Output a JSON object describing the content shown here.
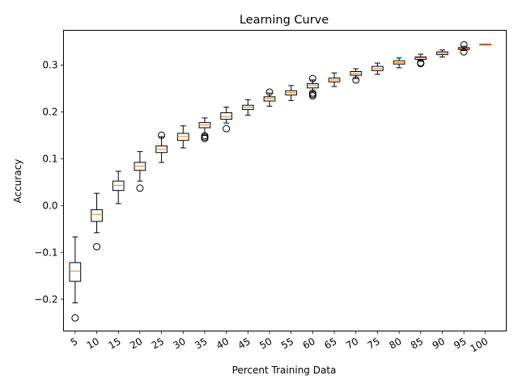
{
  "chart_data": {
    "type": "box",
    "title": "Learning Curve",
    "xlabel": "Percent Training Data",
    "ylabel": "Accuracy",
    "categories": [
      "5",
      "10",
      "15",
      "20",
      "25",
      "30",
      "35",
      "40",
      "45",
      "50",
      "55",
      "60",
      "65",
      "70",
      "75",
      "80",
      "85",
      "90",
      "95",
      "100"
    ],
    "ylim": [
      -0.268,
      0.374
    ],
    "yticks": [
      -0.2,
      -0.1,
      0.0,
      0.1,
      0.2,
      0.3
    ],
    "ytick_labels": [
      "−0.2",
      "−0.1",
      "0.0",
      "0.1",
      "0.2",
      "0.3"
    ],
    "grid": false,
    "boxes": [
      {
        "whisker_low": -0.208,
        "q1": -0.162,
        "median": -0.14,
        "q3": -0.122,
        "whisker_high": -0.067,
        "fliers": [
          -0.24
        ]
      },
      {
        "whisker_low": -0.058,
        "q1": -0.034,
        "median": -0.019,
        "q3": -0.009,
        "whisker_high": 0.026,
        "fliers": [
          -0.088
        ]
      },
      {
        "whisker_low": 0.004,
        "q1": 0.032,
        "median": 0.043,
        "q3": 0.052,
        "whisker_high": 0.073,
        "fliers": []
      },
      {
        "whisker_low": 0.052,
        "q1": 0.075,
        "median": 0.084,
        "q3": 0.092,
        "whisker_high": 0.115,
        "fliers": [
          0.037
        ]
      },
      {
        "whisker_low": 0.092,
        "q1": 0.113,
        "median": 0.12,
        "q3": 0.127,
        "whisker_high": 0.147,
        "fliers": [
          0.15
        ]
      },
      {
        "whisker_low": 0.123,
        "q1": 0.139,
        "median": 0.147,
        "q3": 0.154,
        "whisker_high": 0.17,
        "fliers": []
      },
      {
        "whisker_low": 0.15,
        "q1": 0.166,
        "median": 0.172,
        "q3": 0.177,
        "whisker_high": 0.187,
        "fliers": [
          0.143,
          0.146,
          0.149
        ]
      },
      {
        "whisker_low": 0.176,
        "q1": 0.184,
        "median": 0.19,
        "q3": 0.198,
        "whisker_high": 0.21,
        "fliers": [
          0.164
        ]
      },
      {
        "whisker_low": 0.193,
        "q1": 0.205,
        "median": 0.21,
        "q3": 0.214,
        "whisker_high": 0.226,
        "fliers": []
      },
      {
        "whisker_low": 0.212,
        "q1": 0.223,
        "median": 0.228,
        "q3": 0.232,
        "whisker_high": 0.24,
        "fliers": [
          0.242
        ]
      },
      {
        "whisker_low": 0.224,
        "q1": 0.236,
        "median": 0.241,
        "q3": 0.245,
        "whisker_high": 0.256,
        "fliers": []
      },
      {
        "whisker_low": 0.243,
        "q1": 0.251,
        "median": 0.256,
        "q3": 0.26,
        "whisker_high": 0.268,
        "fliers": [
          0.234,
          0.237,
          0.24,
          0.271
        ]
      },
      {
        "whisker_low": 0.254,
        "q1": 0.264,
        "median": 0.268,
        "q3": 0.272,
        "whisker_high": 0.283,
        "fliers": []
      },
      {
        "whisker_low": 0.271,
        "q1": 0.278,
        "median": 0.282,
        "q3": 0.286,
        "whisker_high": 0.292,
        "fliers": [
          0.268
        ]
      },
      {
        "whisker_low": 0.28,
        "q1": 0.288,
        "median": 0.292,
        "q3": 0.297,
        "whisker_high": 0.304,
        "fliers": []
      },
      {
        "whisker_low": 0.294,
        "q1": 0.302,
        "median": 0.305,
        "q3": 0.309,
        "whisker_high": 0.315,
        "fliers": []
      },
      {
        "whisker_low": 0.308,
        "q1": 0.312,
        "median": 0.315,
        "q3": 0.317,
        "whisker_high": 0.323,
        "fliers": [
          0.303,
          0.305
        ]
      },
      {
        "whisker_low": 0.317,
        "q1": 0.322,
        "median": 0.325,
        "q3": 0.328,
        "whisker_high": 0.332,
        "fliers": []
      },
      {
        "whisker_low": 0.331,
        "q1": 0.333,
        "median": 0.335,
        "q3": 0.337,
        "whisker_high": 0.34,
        "fliers": [
          0.328,
          0.343
        ]
      },
      {
        "whisker_low": 0.343,
        "q1": 0.343,
        "median": 0.343,
        "q3": 0.344,
        "whisker_high": 0.344,
        "fliers": []
      }
    ],
    "colors": {
      "box": "#000000",
      "median": "#ff7f0e",
      "background": "#ffffff"
    }
  }
}
